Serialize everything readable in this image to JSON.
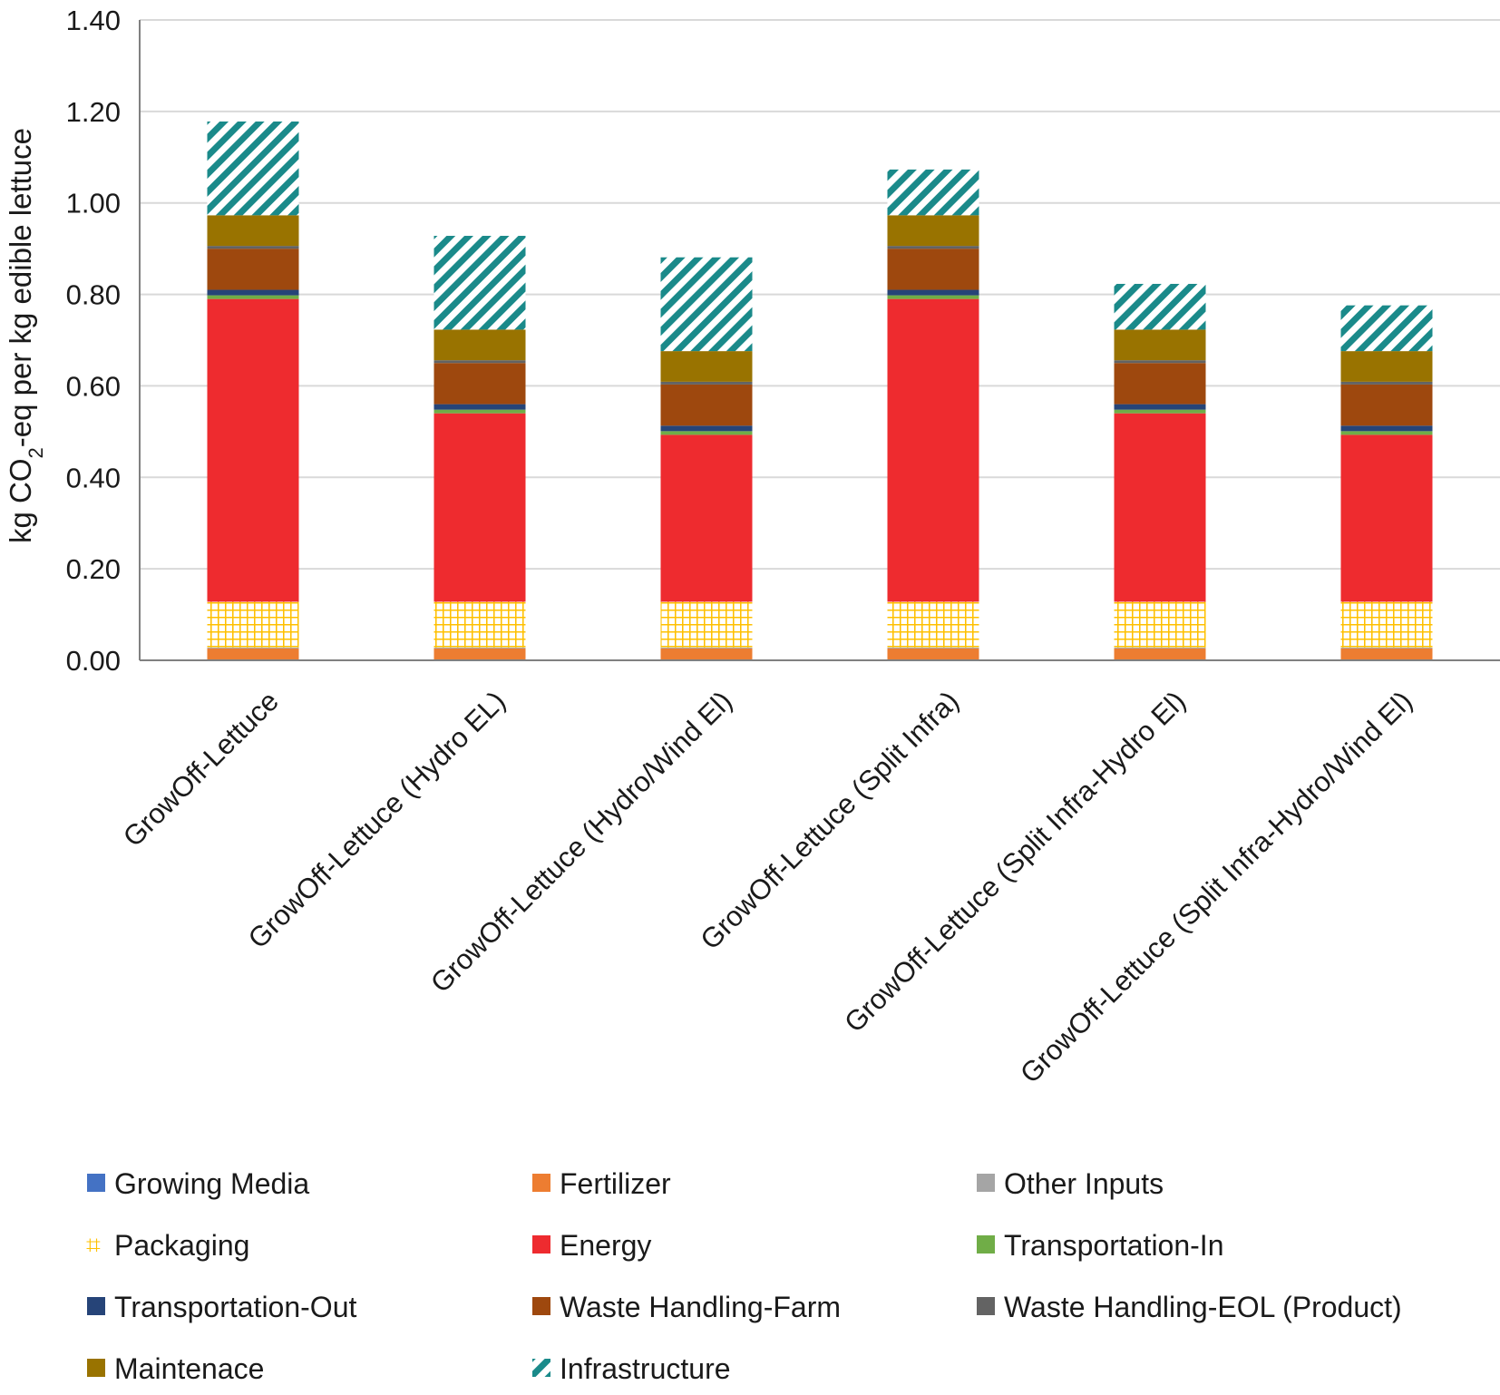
{
  "chart_data": {
    "type": "bar",
    "stacked": true,
    "title": "",
    "xlabel": "",
    "ylabel": {
      "prefix": "kg CO",
      "subscript": "2",
      "suffix": "-eq per kg edible lettuce"
    },
    "ylim": [
      0,
      1.4
    ],
    "yticks": [
      "0.00",
      "0.20",
      "0.40",
      "0.60",
      "0.80",
      "1.00",
      "1.20",
      "1.40"
    ],
    "grid": true,
    "legend_position": "bottom",
    "categories": [
      "GrowOff-Lettuce",
      "GrowOff-Lettuce (Hydro EL)",
      "GrowOff-Lettuce (Hydro/Wind El)",
      "GrowOff-Lettuce (Split Infra)",
      "GrowOff-Lettuce (Split Infra-Hydro El)",
      "GrowOff-Lettuce (Split Infra-Hydro/Wind El)"
    ],
    "series": [
      {
        "name": "Growing Media",
        "color": "#4472c4",
        "pattern": "solid",
        "values": [
          0.001,
          0.001,
          0.001,
          0.001,
          0.001,
          0.001
        ]
      },
      {
        "name": "Fertilizer",
        "color": "#ed7d31",
        "pattern": "solid",
        "values": [
          0.025,
          0.025,
          0.025,
          0.025,
          0.025,
          0.025
        ]
      },
      {
        "name": "Other Inputs",
        "color": "#a5a5a5",
        "pattern": "solid",
        "values": [
          0.002,
          0.002,
          0.002,
          0.002,
          0.002,
          0.002
        ]
      },
      {
        "name": "Packaging",
        "color": "#ffc000",
        "pattern": "grid",
        "values": [
          0.1,
          0.1,
          0.1,
          0.1,
          0.1,
          0.1
        ]
      },
      {
        "name": "Energy",
        "color": "#ee2b2f",
        "pattern": "solid",
        "values": [
          0.662,
          0.412,
          0.365,
          0.662,
          0.412,
          0.365
        ]
      },
      {
        "name": "Transportation-In",
        "color": "#70ad47",
        "pattern": "solid",
        "values": [
          0.008,
          0.008,
          0.008,
          0.008,
          0.008,
          0.008
        ]
      },
      {
        "name": "Transportation-Out",
        "color": "#264478",
        "pattern": "solid",
        "values": [
          0.012,
          0.012,
          0.012,
          0.012,
          0.012,
          0.012
        ]
      },
      {
        "name": "Waste Handling-Farm",
        "color": "#9e480e",
        "pattern": "solid",
        "values": [
          0.09,
          0.09,
          0.09,
          0.09,
          0.09,
          0.09
        ]
      },
      {
        "name": "Waste Handling-EOL (Product)",
        "color": "#636363",
        "pattern": "solid",
        "values": [
          0.006,
          0.006,
          0.006,
          0.006,
          0.006,
          0.006
        ]
      },
      {
        "name": "Maintenace",
        "color": "#997300",
        "pattern": "solid",
        "values": [
          0.067,
          0.067,
          0.067,
          0.067,
          0.067,
          0.067
        ]
      },
      {
        "name": "Infrastructure",
        "color": "#1a8a8a",
        "pattern": "hatch",
        "values": [
          0.205,
          0.205,
          0.205,
          0.1,
          0.1,
          0.1
        ]
      }
    ]
  }
}
